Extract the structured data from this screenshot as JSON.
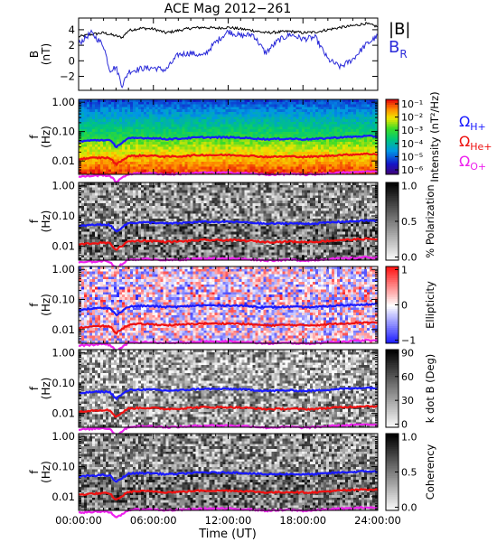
{
  "title": "ACE Mag 2012−261",
  "xlabel": "Time (UT)",
  "time_ticks": [
    "00:00:00",
    "06:00:00",
    "12:00:00",
    "18:00:00",
    "24:00:00"
  ],
  "chart_data": [
    {
      "type": "line",
      "name": "field-panel",
      "ylabel": "B",
      "yunit": "(nT)",
      "ylim": [
        -3.8,
        5.5
      ],
      "yticks": [
        "4",
        "2",
        "0",
        "−2"
      ],
      "ytick_values": [
        4,
        2,
        0,
        -2
      ],
      "x_hours": [
        0,
        1,
        2,
        2.5,
        3,
        3.5,
        4,
        5,
        6,
        7,
        8,
        9,
        10,
        11,
        12,
        13,
        14,
        15,
        16,
        17,
        18,
        19,
        20,
        21,
        22,
        23,
        24
      ],
      "series": [
        {
          "name": "|B|",
          "color": "#000000",
          "values": [
            3.1,
            3.4,
            3.6,
            3.4,
            3.2,
            3.0,
            3.9,
            4.2,
            4.1,
            3.6,
            3.9,
            4.2,
            4.3,
            4.2,
            4.3,
            4.1,
            3.9,
            3.6,
            3.7,
            3.8,
            3.6,
            3.7,
            4.0,
            4.3,
            4.5,
            4.8,
            4.4
          ]
        },
        {
          "name": "B",
          "subscript": "R",
          "color": "#2b2bd9",
          "values": [
            2.2,
            3.6,
            2.0,
            -1.2,
            -0.8,
            -3.2,
            -1.4,
            -1.0,
            -0.9,
            -1.2,
            0.8,
            1.0,
            0.6,
            2.4,
            3.8,
            3.2,
            3.4,
            1.0,
            2.6,
            3.4,
            2.8,
            3.0,
            0.2,
            -0.8,
            0.2,
            2.0,
            3.2
          ]
        }
      ]
    },
    {
      "type": "heatmap",
      "name": "intensity-panel",
      "ylabel": "f",
      "yunit": "(Hz)",
      "yticks": [
        "1.00",
        "0.10",
        "0.01"
      ],
      "ytick_values": [
        1.0,
        0.1,
        0.01
      ],
      "colorbar_label": "Intensity (nT²/Hz)",
      "colorbar_ticks": [
        "10⁻¹",
        "10⁻²",
        "10⁻³",
        "10⁻⁴",
        "10⁻⁵",
        "10⁻⁶"
      ],
      "colormap": "rainbow",
      "range_log10": [
        -6.5,
        -0.5
      ]
    },
    {
      "type": "heatmap",
      "name": "polarization-panel",
      "ylabel": "f",
      "yunit": "(Hz)",
      "yticks": [
        "1.00",
        "0.10",
        "0.01"
      ],
      "ytick_values": [
        1.0,
        0.1,
        0.01
      ],
      "colorbar_label": "% Polarization",
      "colorbar_ticks": [
        "1.0",
        "0.5",
        "0.0"
      ],
      "colormap": "gray",
      "range": [
        0,
        1
      ]
    },
    {
      "type": "heatmap",
      "name": "ellipticity-panel",
      "ylabel": "f",
      "yunit": "(Hz)",
      "yticks": [
        "1.00",
        "0.10",
        "0.01"
      ],
      "ytick_values": [
        1.0,
        0.1,
        0.01
      ],
      "colorbar_label": "Ellipticity",
      "colorbar_ticks": [
        "1",
        "0",
        "−1"
      ],
      "colormap": "bluewhitered",
      "range": [
        -1,
        1
      ]
    },
    {
      "type": "heatmap",
      "name": "kdotb-panel",
      "ylabel": "f",
      "yunit": "(Hz)",
      "yticks": [
        "1.00",
        "0.10",
        "0.01"
      ],
      "ytick_values": [
        1.0,
        0.1,
        0.01
      ],
      "colorbar_label": "k dot B (Deg)",
      "colorbar_ticks": [
        "90",
        "60",
        "30",
        "0"
      ],
      "colormap": "gray",
      "range": [
        0,
        90
      ]
    },
    {
      "type": "heatmap",
      "name": "coherency-panel",
      "ylabel": "f",
      "yunit": "(Hz)",
      "yticks": [
        "1.00",
        "0.10",
        "0.01"
      ],
      "ytick_values": [
        1.0,
        0.1,
        0.01
      ],
      "colorbar_label": "Coherency",
      "colorbar_ticks": [
        "1.0",
        "0.5",
        "0.0"
      ],
      "colormap": "gray",
      "range": [
        0,
        1
      ]
    }
  ],
  "gyro_lines": {
    "x_hours": [
      0,
      1,
      2,
      2.5,
      3,
      3.5,
      4,
      5,
      6,
      7,
      8,
      9,
      10,
      11,
      12,
      13,
      14,
      15,
      16,
      17,
      18,
      19,
      20,
      21,
      22,
      23,
      24
    ],
    "series": [
      {
        "name": "Ω",
        "subscript": "H+",
        "color": "#1a1aff",
        "values": [
          0.046,
          0.05,
          0.052,
          0.05,
          0.03,
          0.042,
          0.058,
          0.061,
          0.06,
          0.056,
          0.057,
          0.061,
          0.064,
          0.063,
          0.064,
          0.062,
          0.059,
          0.055,
          0.056,
          0.057,
          0.055,
          0.056,
          0.06,
          0.064,
          0.066,
          0.07,
          0.068
        ]
      },
      {
        "name": "Ω",
        "subscript": "He+",
        "color": "#ee1111",
        "values": [
          0.0115,
          0.0125,
          0.013,
          0.0125,
          0.0075,
          0.0105,
          0.0145,
          0.0152,
          0.015,
          0.014,
          0.0143,
          0.0152,
          0.016,
          0.0158,
          0.016,
          0.0155,
          0.0148,
          0.0138,
          0.014,
          0.0143,
          0.0138,
          0.014,
          0.015,
          0.016,
          0.0165,
          0.0175,
          0.017
        ]
      },
      {
        "name": "Ω",
        "subscript": "O+",
        "color": "#ee22ee",
        "values": [
          0.0029,
          0.0031,
          0.0033,
          0.0031,
          0.0019,
          0.0026,
          0.0036,
          0.0038,
          0.0038,
          0.0035,
          0.0036,
          0.0038,
          0.004,
          0.004,
          0.004,
          0.0039,
          0.0037,
          0.0034,
          0.0035,
          0.0036,
          0.0034,
          0.0035,
          0.0038,
          0.004,
          0.0041,
          0.0044,
          0.0042
        ]
      }
    ]
  }
}
